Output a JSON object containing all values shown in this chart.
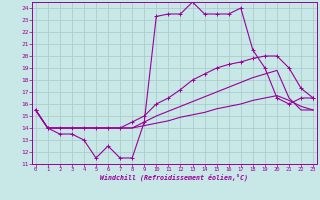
{
  "bg_color": "#c8e8e8",
  "grid_color": "#a8c8c8",
  "line_color": "#990099",
  "xlim": [
    -0.3,
    23.3
  ],
  "ylim": [
    11,
    24.5
  ],
  "xticks": [
    0,
    1,
    2,
    3,
    4,
    5,
    6,
    7,
    8,
    9,
    10,
    11,
    12,
    13,
    14,
    15,
    16,
    17,
    18,
    19,
    20,
    21,
    22,
    23
  ],
  "yticks": [
    11,
    12,
    13,
    14,
    15,
    16,
    17,
    18,
    19,
    20,
    21,
    22,
    23,
    24
  ],
  "xlabel": "Windchill (Refroidissement éolien,°C)",
  "s1_x": [
    0,
    1,
    2,
    3,
    4,
    5,
    6,
    7,
    8,
    9,
    10,
    11,
    12,
    13,
    14,
    15,
    16,
    17,
    18,
    19,
    20,
    21,
    22,
    23
  ],
  "s1_y": [
    15.5,
    14.0,
    13.5,
    13.5,
    13.0,
    11.5,
    12.5,
    11.5,
    11.5,
    14.5,
    23.3,
    23.5,
    23.5,
    24.5,
    23.5,
    23.5,
    23.5,
    24.0,
    20.5,
    19.0,
    16.5,
    16.0,
    16.5,
    16.5
  ],
  "s2_x": [
    0,
    1,
    2,
    3,
    4,
    5,
    6,
    7,
    8,
    9,
    10,
    11,
    12,
    13,
    14,
    15,
    16,
    17,
    18,
    19,
    20,
    21,
    22,
    23
  ],
  "s2_y": [
    15.5,
    14.0,
    14.0,
    14.0,
    14.0,
    14.0,
    14.0,
    14.0,
    14.5,
    15.0,
    16.0,
    16.5,
    17.2,
    18.0,
    18.5,
    19.0,
    19.3,
    19.5,
    19.8,
    20.0,
    20.0,
    19.0,
    17.3,
    16.5
  ],
  "s3_x": [
    0,
    1,
    2,
    3,
    4,
    5,
    6,
    7,
    8,
    9,
    10,
    11,
    12,
    13,
    14,
    15,
    16,
    17,
    18,
    19,
    20,
    21,
    22,
    23
  ],
  "s3_y": [
    15.5,
    14.0,
    14.0,
    14.0,
    14.0,
    14.0,
    14.0,
    14.0,
    14.0,
    14.5,
    15.0,
    15.4,
    15.8,
    16.2,
    16.6,
    17.0,
    17.4,
    17.8,
    18.2,
    18.5,
    18.8,
    16.5,
    15.5,
    15.5
  ],
  "s4_x": [
    0,
    1,
    2,
    3,
    4,
    5,
    6,
    7,
    8,
    9,
    10,
    11,
    12,
    13,
    14,
    15,
    16,
    17,
    18,
    19,
    20,
    21,
    22,
    23
  ],
  "s4_y": [
    15.5,
    14.0,
    14.0,
    14.0,
    14.0,
    14.0,
    14.0,
    14.0,
    14.0,
    14.2,
    14.4,
    14.6,
    14.9,
    15.1,
    15.3,
    15.6,
    15.8,
    16.0,
    16.3,
    16.5,
    16.7,
    16.3,
    15.8,
    15.5
  ]
}
